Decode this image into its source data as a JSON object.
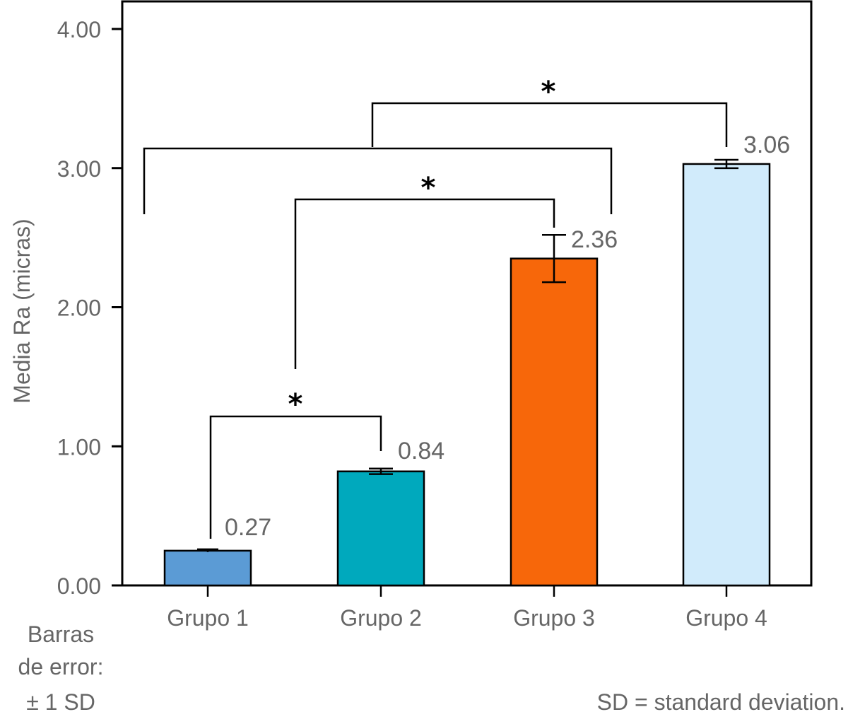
{
  "chart_data": {
    "type": "bar",
    "title": "",
    "xlabel": "",
    "ylabel": "Media Ra (micras)",
    "ylim": [
      0,
      4.2
    ],
    "yticks": [
      0,
      1,
      2,
      3,
      4
    ],
    "ytick_labels": [
      "0.00",
      "1.00",
      "2.00",
      "3.00",
      "4.00"
    ],
    "grid": false,
    "categories": [
      "Grupo 1",
      "Grupo 2",
      "Grupo 3",
      "Grupo 4"
    ],
    "values": [
      0.27,
      0.84,
      2.36,
      3.06
    ],
    "value_labels": [
      "0.27",
      "0.84",
      "2.36",
      "3.06"
    ],
    "errors_sd": [
      0.01,
      0.02,
      0.17,
      0.03
    ],
    "colors": [
      "#5b9bd5",
      "#00a9bd",
      "#f7670a",
      "#d1ebfb"
    ],
    "significance": [
      {
        "from": "Grupo 1",
        "to": "Grupo 2",
        "label": "*"
      },
      {
        "from": "Grupo 2",
        "to": "Grupo 3",
        "label": "*"
      },
      {
        "from": "Grupo 1-3",
        "to": "Grupo 4",
        "label": "*"
      }
    ],
    "annotations": {
      "error_bars_note": [
        "Barras",
        "de error:",
        "± 1 SD"
      ],
      "sd_note": "SD = standard deviation."
    }
  }
}
